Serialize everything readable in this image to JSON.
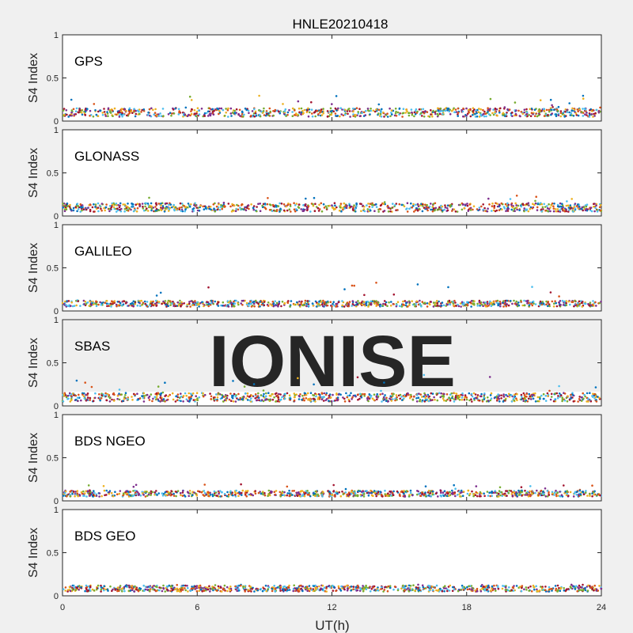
{
  "chart_data": {
    "type": "scatter",
    "title": "HNLE20210418",
    "xlabel": "UT(h)",
    "ylabel": "S4 Index",
    "xlim": [
      0,
      24
    ],
    "ylim": [
      0,
      1
    ],
    "xticks": [
      "0",
      "6",
      "12",
      "18",
      "24"
    ],
    "yticks": [
      "0",
      "0.5",
      "1"
    ],
    "watermark": "IONISE",
    "series_colors": [
      "#0072bd",
      "#d95319",
      "#edb120",
      "#7e2f8e",
      "#77ac30",
      "#4dbeee",
      "#a2142f"
    ],
    "panels": [
      {
        "system": "GPS",
        "typical_s4": [
          0.05,
          0.15
        ],
        "max_s4": 0.3
      },
      {
        "system": "GLONASS",
        "typical_s4": [
          0.05,
          0.15
        ],
        "max_s4": 0.25
      },
      {
        "system": "GALILEO",
        "typical_s4": [
          0.05,
          0.12
        ],
        "max_s4": 0.33
      },
      {
        "system": "SBAS",
        "typical_s4": [
          0.05,
          0.15
        ],
        "max_s4": 0.36
      },
      {
        "system": "BDS NGEO",
        "typical_s4": [
          0.05,
          0.12
        ],
        "max_s4": 0.2
      },
      {
        "system": "BDS GEO",
        "typical_s4": [
          0.05,
          0.12
        ],
        "max_s4": 0.13
      }
    ]
  }
}
